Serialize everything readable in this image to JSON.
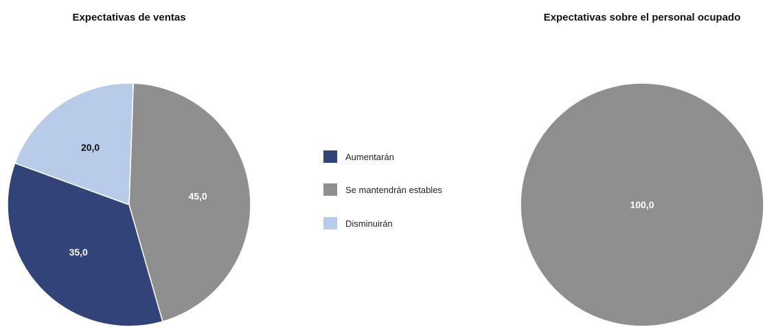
{
  "colors": {
    "aumentaran": "#32437a",
    "estables": "#8f8f8f",
    "disminuiran": "#b8cce9"
  },
  "legend": {
    "items": [
      {
        "label": "Aumentarán",
        "color": "#32437a"
      },
      {
        "label": "Se mantendrán estables",
        "color": "#8f8f8f"
      },
      {
        "label": "Disminuirán",
        "color": "#b8cce9"
      }
    ]
  },
  "chart_data": [
    {
      "type": "pie",
      "title": "Expectativas de ventas",
      "categories": [
        "Aumentarán",
        "Se mantendrán estables",
        "Disminuirán"
      ],
      "values": [
        35.0,
        45.0,
        20.0
      ],
      "labels": [
        "35,0",
        "45,0",
        "20,0"
      ],
      "colors": [
        "#32437a",
        "#8f8f8f",
        "#b8cce9"
      ],
      "label_colors": [
        "#ffffff",
        "#ffffff",
        "#111111"
      ],
      "legend": "right"
    },
    {
      "type": "pie",
      "title": "Expectativas sobre el personal ocupado",
      "categories": [
        "Aumentarán",
        "Se mantendrán estables",
        "Disminuirán"
      ],
      "values": [
        0,
        100.0,
        0
      ],
      "labels": [
        "",
        "100,0",
        ""
      ],
      "colors": [
        "#32437a",
        "#8f8f8f",
        "#b8cce9"
      ],
      "label_colors": [
        "#ffffff",
        "#ffffff",
        "#111111"
      ]
    }
  ]
}
